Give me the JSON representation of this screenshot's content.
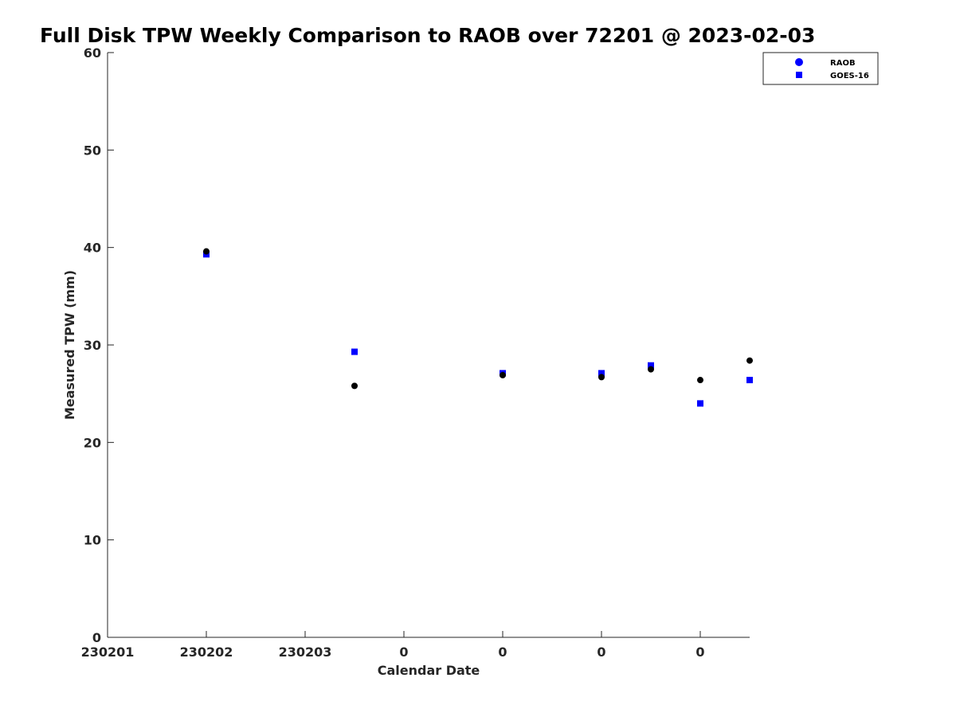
{
  "chart_data": {
    "type": "scatter",
    "title": "Full Disk TPW Weekly Comparison to RAOB over 72201 @ 2023-02-03",
    "xlabel": "Calendar Date",
    "ylabel": "Measured TPW (mm)",
    "xlim": [
      0,
      6.5
    ],
    "ylim": [
      0,
      60
    ],
    "x_ticks": [
      0,
      1,
      2,
      3,
      4,
      5,
      6
    ],
    "x_tick_labels": [
      "230201",
      "230202",
      "230203",
      "0",
      "0",
      "0",
      "0"
    ],
    "y_ticks": [
      0,
      10,
      20,
      30,
      40,
      50,
      60
    ],
    "y_tick_labels": [
      "0",
      "10",
      "20",
      "30",
      "40",
      "50",
      "60"
    ],
    "grid": false,
    "legend_position": "top-right",
    "series": [
      {
        "name": "RAOB",
        "marker": "circle",
        "plot_color": "#000000",
        "legend_color": "#0000ff",
        "x": [
          1.0,
          2.5,
          4.0,
          5.0,
          5.5,
          6.0,
          6.5
        ],
        "y": [
          39.6,
          25.8,
          26.9,
          26.7,
          27.5,
          26.4,
          28.4
        ]
      },
      {
        "name": "GOES-16",
        "marker": "square",
        "plot_color": "#0000ff",
        "legend_color": "#0000ff",
        "x": [
          1.0,
          2.5,
          4.0,
          5.0,
          5.5,
          6.0,
          6.5
        ],
        "y": [
          39.3,
          29.3,
          27.1,
          27.1,
          27.9,
          24.0,
          26.4
        ]
      }
    ]
  }
}
